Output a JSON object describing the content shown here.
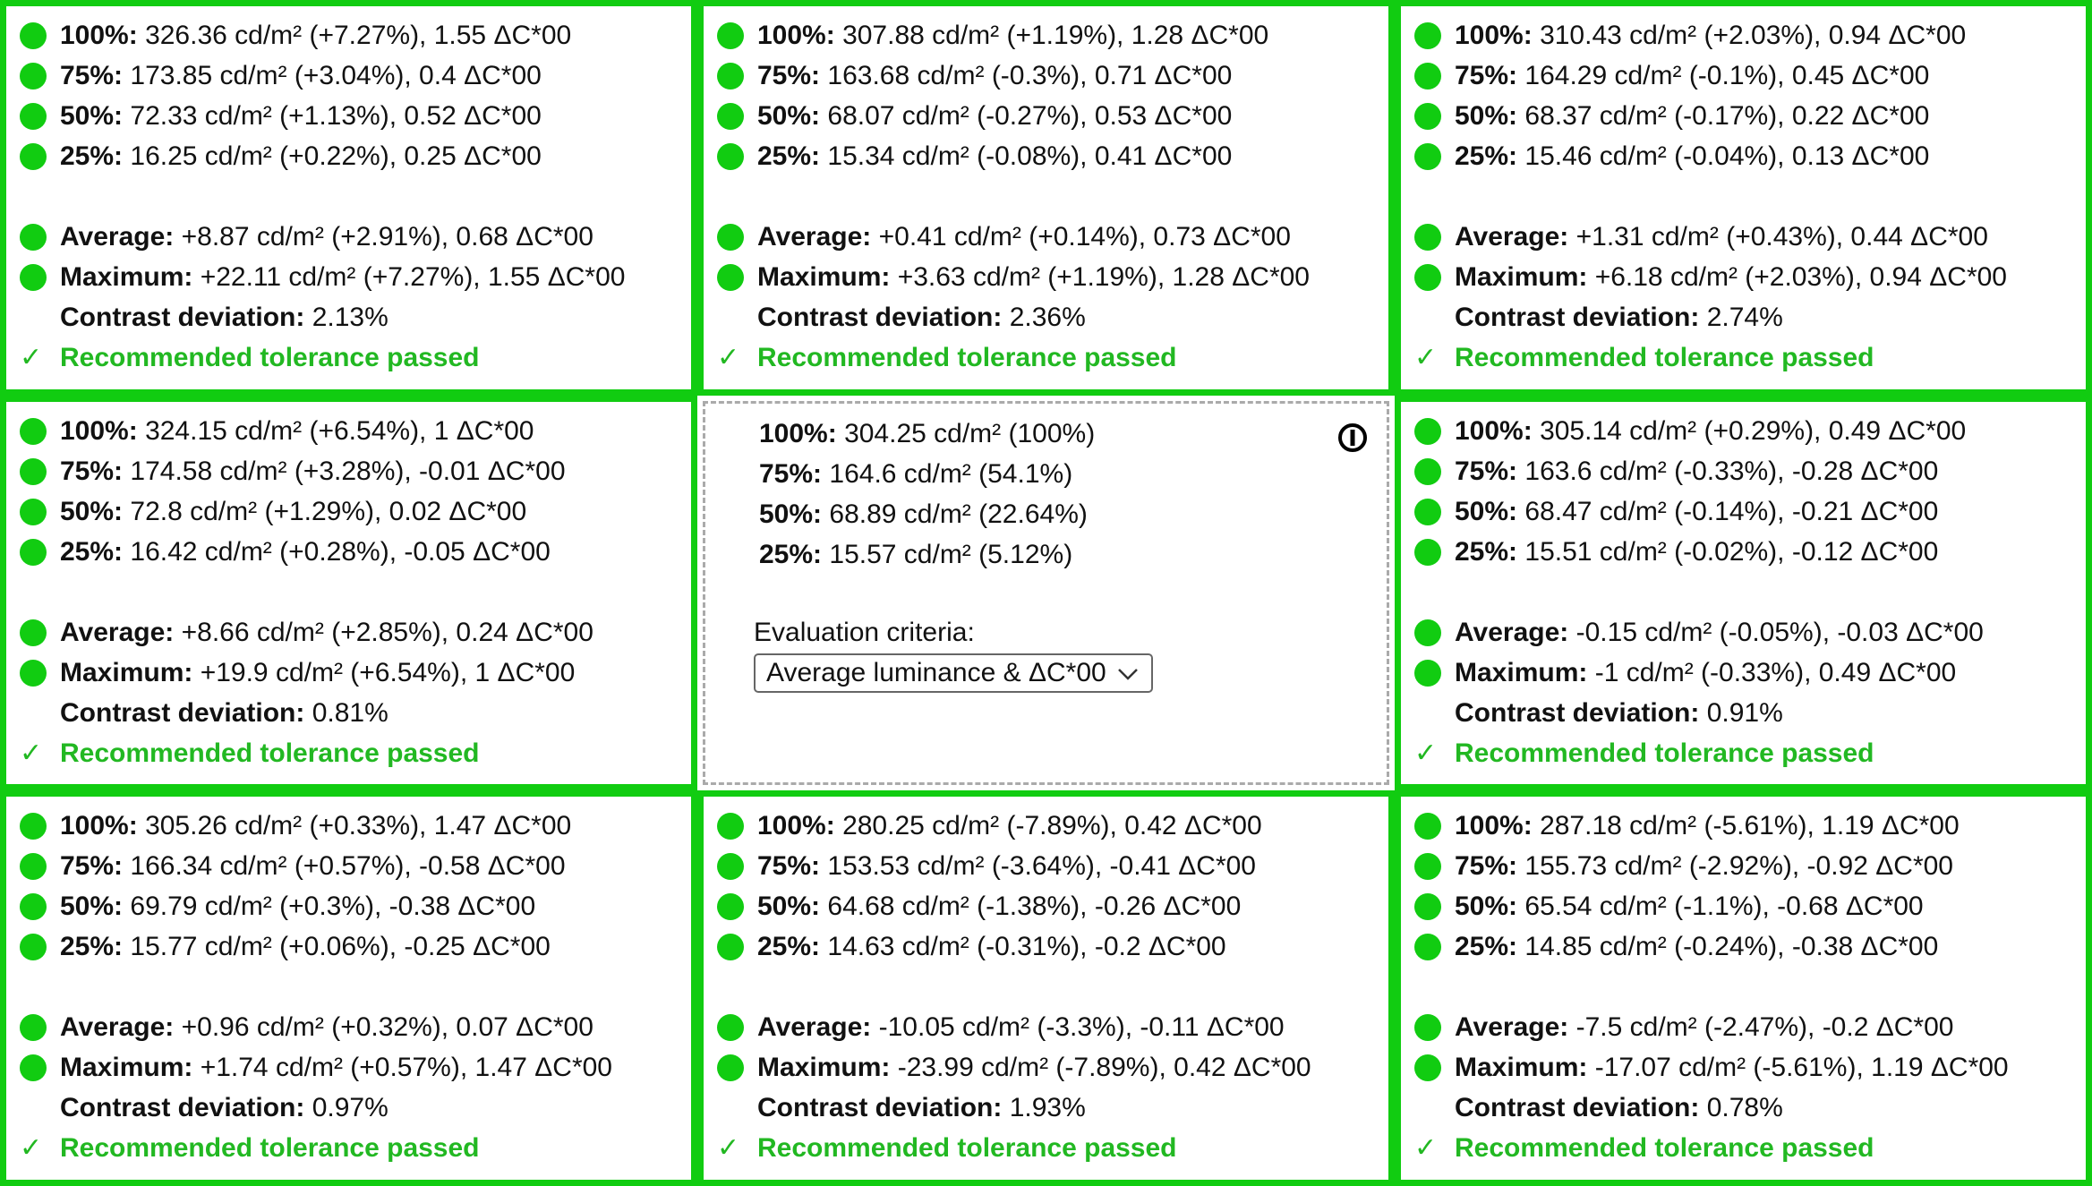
{
  "cells": [
    {
      "lines": [
        {
          "label": "100%:",
          "text": "326.36 cd/m² (+7.27%), 1.55 ΔC*00"
        },
        {
          "label": "75%:",
          "text": "173.85 cd/m² (+3.04%), 0.4 ΔC*00"
        },
        {
          "label": "50%:",
          "text": "72.33 cd/m² (+1.13%), 0.52 ΔC*00"
        },
        {
          "label": "25%:",
          "text": "16.25 cd/m² (+0.22%), 0.25 ΔC*00"
        }
      ],
      "summary": [
        {
          "label": "Average:",
          "text": "+8.87 cd/m² (+2.91%), 0.68 ΔC*00"
        },
        {
          "label": "Maximum:",
          "text": "+22.11 cd/m² (+7.27%), 1.55 ΔC*00"
        }
      ],
      "contrast": {
        "label": "Contrast deviation:",
        "text": "2.13%"
      },
      "status": {
        "mark": "✓",
        "text": "Recommended tolerance passed"
      }
    },
    {
      "lines": [
        {
          "label": "100%:",
          "text": "307.88 cd/m² (+1.19%), 1.28 ΔC*00"
        },
        {
          "label": "75%:",
          "text": "163.68 cd/m² (-0.3%), 0.71 ΔC*00"
        },
        {
          "label": "50%:",
          "text": "68.07 cd/m² (-0.27%), 0.53 ΔC*00"
        },
        {
          "label": "25%:",
          "text": "15.34 cd/m² (-0.08%), 0.41 ΔC*00"
        }
      ],
      "summary": [
        {
          "label": "Average:",
          "text": "+0.41 cd/m² (+0.14%), 0.73 ΔC*00"
        },
        {
          "label": "Maximum:",
          "text": "+3.63 cd/m² (+1.19%), 1.28 ΔC*00"
        }
      ],
      "contrast": {
        "label": "Contrast deviation:",
        "text": "2.36%"
      },
      "status": {
        "mark": "✓",
        "text": "Recommended tolerance passed"
      }
    },
    {
      "lines": [
        {
          "label": "100%:",
          "text": "310.43 cd/m² (+2.03%), 0.94 ΔC*00"
        },
        {
          "label": "75%:",
          "text": "164.29 cd/m² (-0.1%), 0.45 ΔC*00"
        },
        {
          "label": "50%:",
          "text": "68.37 cd/m² (-0.17%), 0.22 ΔC*00"
        },
        {
          "label": "25%:",
          "text": "15.46 cd/m² (-0.04%), 0.13 ΔC*00"
        }
      ],
      "summary": [
        {
          "label": "Average:",
          "text": "+1.31 cd/m² (+0.43%), 0.44 ΔC*00"
        },
        {
          "label": "Maximum:",
          "text": "+6.18 cd/m² (+2.03%), 0.94 ΔC*00"
        }
      ],
      "contrast": {
        "label": "Contrast deviation:",
        "text": "2.74%"
      },
      "status": {
        "mark": "✓",
        "text": "Recommended tolerance passed"
      }
    },
    {
      "lines": [
        {
          "label": "100%:",
          "text": "324.15 cd/m² (+6.54%), 1 ΔC*00"
        },
        {
          "label": "75%:",
          "text": "174.58 cd/m² (+3.28%), -0.01 ΔC*00"
        },
        {
          "label": "50%:",
          "text": "72.8 cd/m² (+1.29%), 0.02 ΔC*00"
        },
        {
          "label": "25%:",
          "text": "16.42 cd/m² (+0.28%), -0.05 ΔC*00"
        }
      ],
      "summary": [
        {
          "label": "Average:",
          "text": "+8.66 cd/m² (+2.85%), 0.24 ΔC*00"
        },
        {
          "label": "Maximum:",
          "text": "+19.9 cd/m² (+6.54%), 1 ΔC*00"
        }
      ],
      "contrast": {
        "label": "Contrast deviation:",
        "text": "0.81%"
      },
      "status": {
        "mark": "✓",
        "text": "Recommended tolerance passed"
      }
    },
    {
      "lines": [
        {
          "label": "100%:",
          "text": "304.25 cd/m² (100%)"
        },
        {
          "label": "75%:",
          "text": "164.6 cd/m² (54.1%)"
        },
        {
          "label": "50%:",
          "text": "68.89 cd/m² (22.64%)"
        },
        {
          "label": "25%:",
          "text": "15.57 cd/m² (5.12%)"
        }
      ],
      "criteria_label": "Evaluation criteria:",
      "criteria_value": "Average luminance & ΔC*00"
    },
    {
      "lines": [
        {
          "label": "100%:",
          "text": "305.14 cd/m² (+0.29%), 0.49 ΔC*00"
        },
        {
          "label": "75%:",
          "text": "163.6 cd/m² (-0.33%), -0.28 ΔC*00"
        },
        {
          "label": "50%:",
          "text": "68.47 cd/m² (-0.14%), -0.21 ΔC*00"
        },
        {
          "label": "25%:",
          "text": "15.51 cd/m² (-0.02%), -0.12 ΔC*00"
        }
      ],
      "summary": [
        {
          "label": "Average:",
          "text": "-0.15 cd/m² (-0.05%), -0.03 ΔC*00"
        },
        {
          "label": "Maximum:",
          "text": "-1 cd/m² (-0.33%), 0.49 ΔC*00"
        }
      ],
      "contrast": {
        "label": "Contrast deviation:",
        "text": "0.91%"
      },
      "status": {
        "mark": "✓",
        "text": "Recommended tolerance passed"
      }
    },
    {
      "lines": [
        {
          "label": "100%:",
          "text": "305.26 cd/m² (+0.33%), 1.47 ΔC*00"
        },
        {
          "label": "75%:",
          "text": "166.34 cd/m² (+0.57%), -0.58 ΔC*00"
        },
        {
          "label": "50%:",
          "text": "69.79 cd/m² (+0.3%), -0.38 ΔC*00"
        },
        {
          "label": "25%:",
          "text": "15.77 cd/m² (+0.06%), -0.25 ΔC*00"
        }
      ],
      "summary": [
        {
          "label": "Average:",
          "text": "+0.96 cd/m² (+0.32%), 0.07 ΔC*00"
        },
        {
          "label": "Maximum:",
          "text": "+1.74 cd/m² (+0.57%), 1.47 ΔC*00"
        }
      ],
      "contrast": {
        "label": "Contrast deviation:",
        "text": "0.97%"
      },
      "status": {
        "mark": "✓",
        "text": "Recommended tolerance passed"
      }
    },
    {
      "lines": [
        {
          "label": "100%:",
          "text": "280.25 cd/m² (-7.89%), 0.42 ΔC*00"
        },
        {
          "label": "75%:",
          "text": "153.53 cd/m² (-3.64%), -0.41 ΔC*00"
        },
        {
          "label": "50%:",
          "text": "64.68 cd/m² (-1.38%), -0.26 ΔC*00"
        },
        {
          "label": "25%:",
          "text": "14.63 cd/m² (-0.31%), -0.2 ΔC*00"
        }
      ],
      "summary": [
        {
          "label": "Average:",
          "text": "-10.05 cd/m² (-3.3%), -0.11 ΔC*00"
        },
        {
          "label": "Maximum:",
          "text": "-23.99 cd/m² (-7.89%), 0.42 ΔC*00"
        }
      ],
      "contrast": {
        "label": "Contrast deviation:",
        "text": "1.93%"
      },
      "status": {
        "mark": "✓",
        "text": "Recommended tolerance passed"
      }
    },
    {
      "lines": [
        {
          "label": "100%:",
          "text": "287.18 cd/m² (-5.61%), 1.19 ΔC*00"
        },
        {
          "label": "75%:",
          "text": "155.73 cd/m² (-2.92%), -0.92 ΔC*00"
        },
        {
          "label": "50%:",
          "text": "65.54 cd/m² (-1.1%), -0.68 ΔC*00"
        },
        {
          "label": "25%:",
          "text": "14.85 cd/m² (-0.24%), -0.38 ΔC*00"
        }
      ],
      "summary": [
        {
          "label": "Average:",
          "text": "-7.5 cd/m² (-2.47%), -0.2 ΔC*00"
        },
        {
          "label": "Maximum:",
          "text": "-17.07 cd/m² (-5.61%), 1.19 ΔC*00"
        }
      ],
      "contrast": {
        "label": "Contrast deviation:",
        "text": "0.78%"
      },
      "status": {
        "mark": "✓",
        "text": "Recommended tolerance passed"
      }
    }
  ]
}
